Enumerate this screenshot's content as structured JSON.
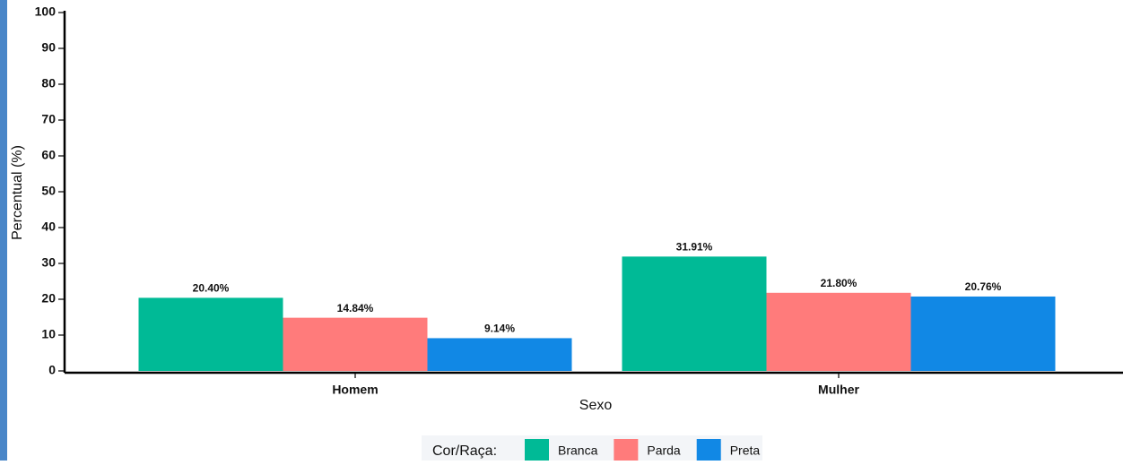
{
  "chart_data": {
    "type": "bar",
    "categories": [
      "Homem",
      "Mulher"
    ],
    "series": [
      {
        "name": "Branca",
        "color": "#00ba96",
        "values": [
          20.4,
          31.91
        ],
        "value_labels": [
          "20.40%",
          "31.91%"
        ]
      },
      {
        "name": "Parda",
        "color": "#ff7b7b",
        "values": [
          14.84,
          21.8
        ],
        "value_labels": [
          "14.84%",
          "21.80%"
        ]
      },
      {
        "name": "Preta",
        "color": "#1188e5",
        "values": [
          9.14,
          20.76
        ],
        "value_labels": [
          "9.14%",
          "20.76%"
        ]
      }
    ],
    "ylim": [
      0,
      100
    ],
    "yticks": [
      0,
      10,
      20,
      30,
      40,
      50,
      60,
      70,
      80,
      90,
      100
    ],
    "ylabel": "Percentual (%)",
    "xlabel": "Sexo",
    "legend_title": "Cor/Raça:",
    "legend": "bottom"
  }
}
